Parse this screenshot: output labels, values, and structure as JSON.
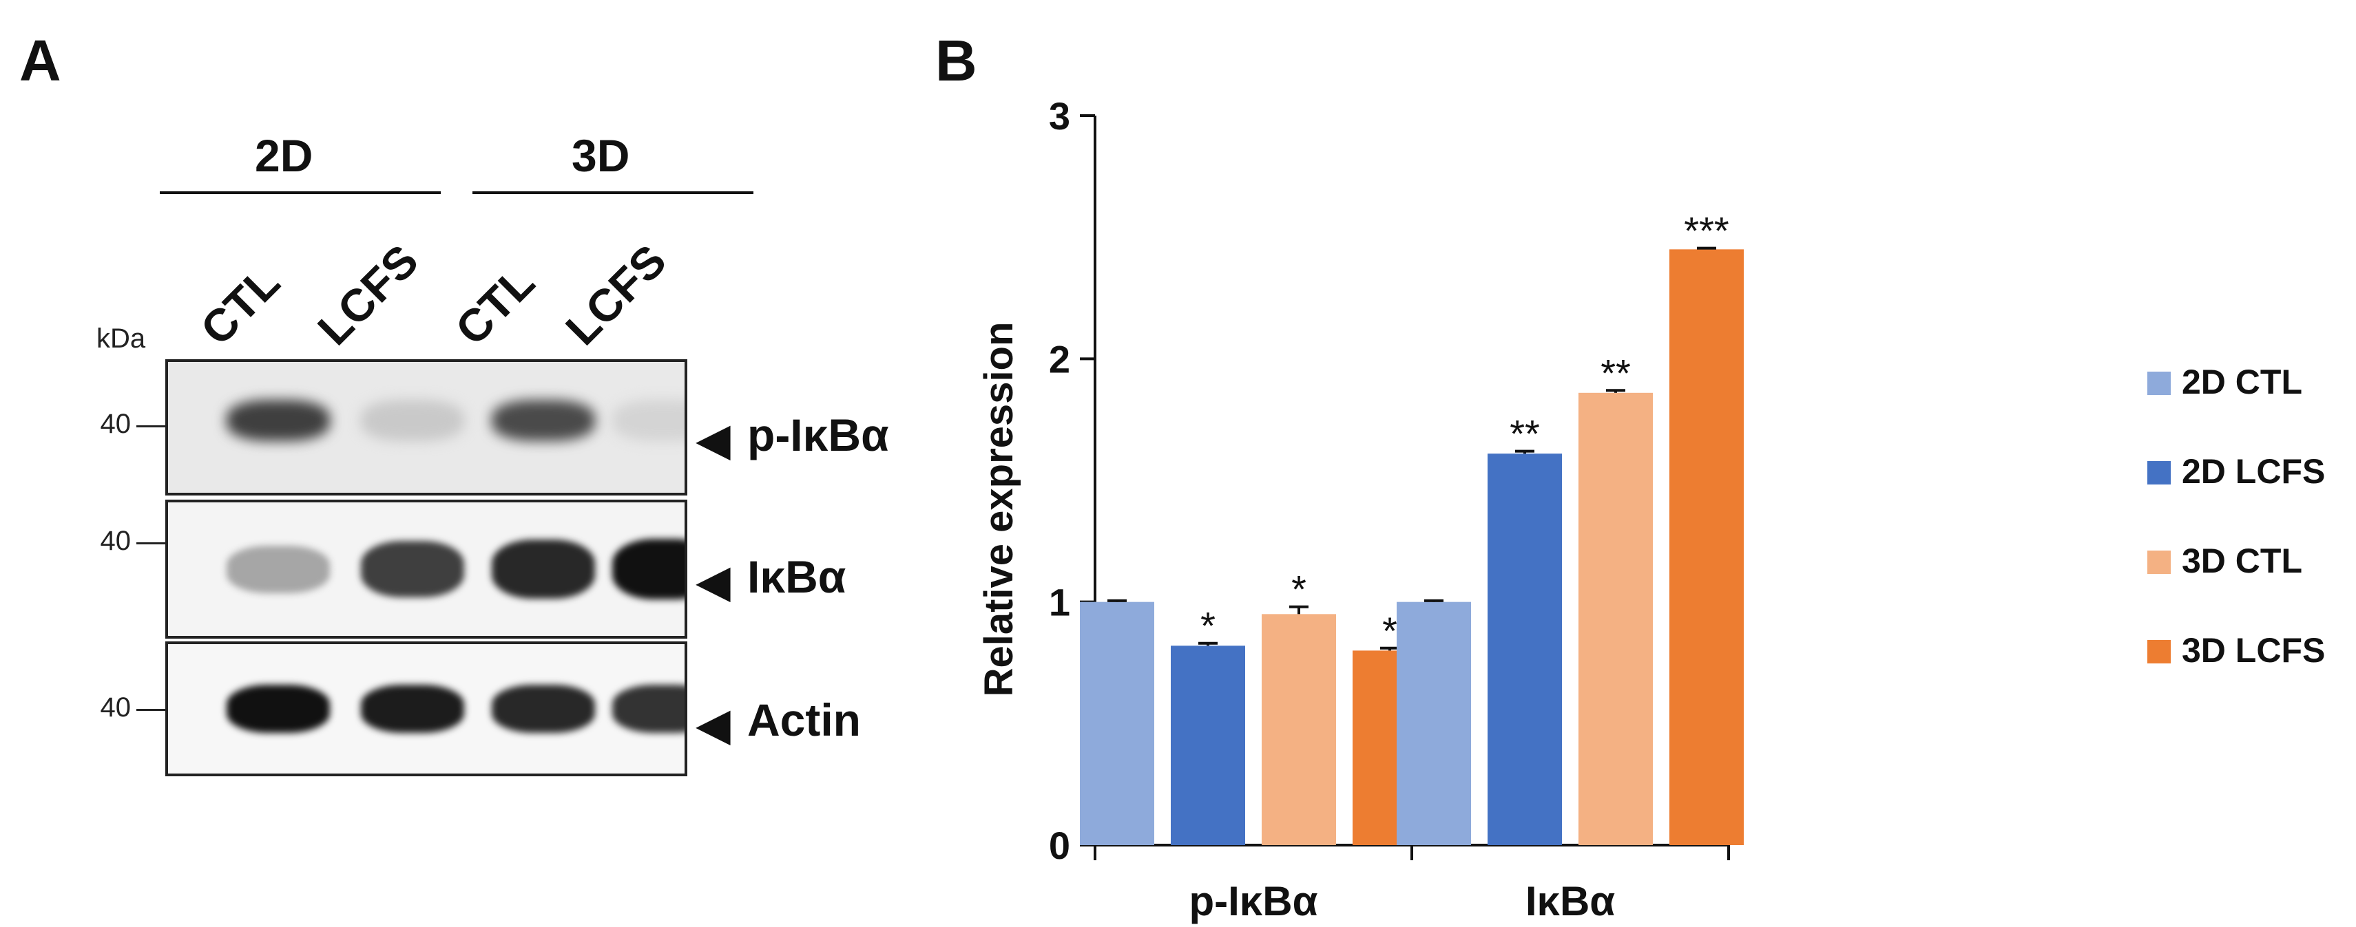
{
  "panel_a": {
    "letter": "A",
    "groups": [
      {
        "label": "2D"
      },
      {
        "label": "3D"
      }
    ],
    "lanes": [
      "CTL",
      "LCFS",
      "CTL",
      "LCFS"
    ],
    "kda_label": "kDa",
    "blots": [
      {
        "marker": "40",
        "label": "p-IκBα",
        "arrow": "◀"
      },
      {
        "marker": "40",
        "label": "IκBα",
        "arrow": "◀"
      },
      {
        "marker": "40",
        "label": "Actin",
        "arrow": "◀"
      }
    ],
    "band_intensity": [
      [
        0.75,
        0.15,
        0.7,
        0.1
      ],
      [
        0.3,
        0.75,
        0.85,
        0.95
      ],
      [
        0.95,
        0.9,
        0.85,
        0.8
      ]
    ]
  },
  "panel_b": {
    "letter": "B"
  },
  "chart_data": {
    "type": "bar",
    "title": "",
    "xlabel": "",
    "ylabel": "Relative expression",
    "ylim": [
      0,
      3
    ],
    "yticks": [
      "0",
      "1",
      "2",
      "3"
    ],
    "categories": [
      "p-IκBα",
      "IκBα"
    ],
    "series": [
      {
        "name": "2D CTL",
        "color": "#8eaadb",
        "values": [
          1.0,
          1.0
        ],
        "errors": [
          0.005,
          0.005
        ],
        "sig": [
          "",
          ""
        ]
      },
      {
        "name": "2D LCFS",
        "color": "#4472c4",
        "values": [
          0.82,
          1.61
        ],
        "errors": [
          0.01,
          0.01
        ],
        "sig": [
          "*",
          "**"
        ]
      },
      {
        "name": "3D CTL",
        "color": "#f4b183",
        "values": [
          0.95,
          1.86
        ],
        "errors": [
          0.03,
          0.01
        ],
        "sig": [
          "*",
          "**"
        ]
      },
      {
        "name": "3D LCFS",
        "color": "#ed7d31",
        "values": [
          0.8,
          2.45
        ],
        "errors": [
          0.01,
          0.005
        ],
        "sig": [
          "*",
          "***"
        ]
      }
    ],
    "legend_position": "right"
  }
}
